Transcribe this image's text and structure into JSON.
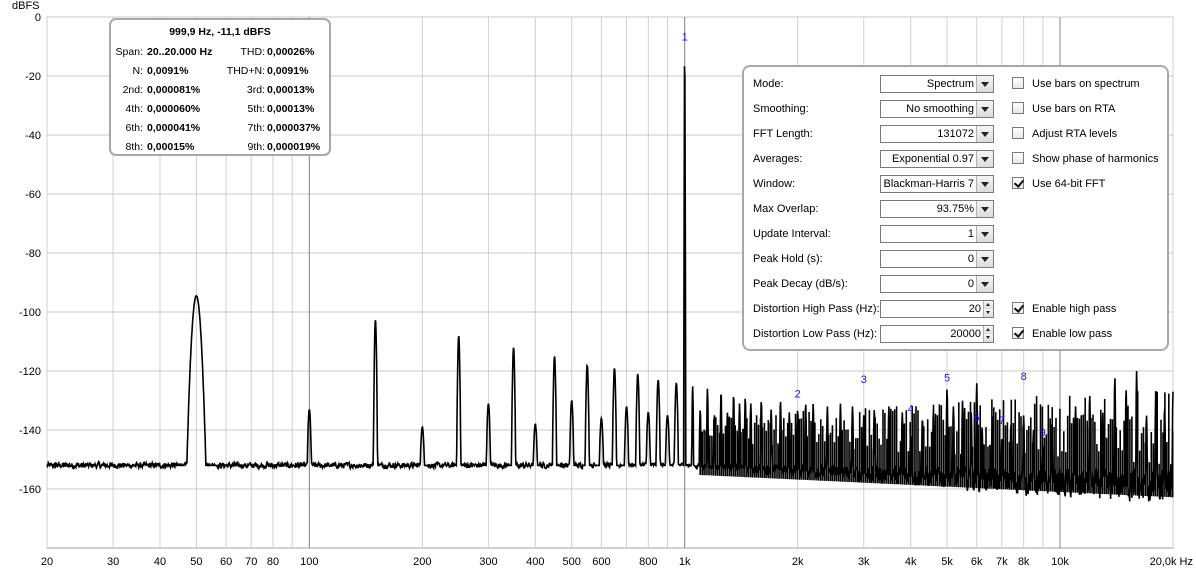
{
  "chart_data": {
    "type": "line",
    "ylabel": "dBFS",
    "xlim": [
      20,
      20000
    ],
    "ylim": [
      -180,
      0
    ],
    "x_scale": "log",
    "grid": true,
    "x_ticks": [
      {
        "v": 20,
        "t": "20"
      },
      {
        "v": 30,
        "t": "30"
      },
      {
        "v": 40,
        "t": "40"
      },
      {
        "v": 50,
        "t": "50"
      },
      {
        "v": 60,
        "t": "60"
      },
      {
        "v": 70,
        "t": "70"
      },
      {
        "v": 80,
        "t": "80"
      },
      {
        "v": 100,
        "t": "100"
      },
      {
        "v": 200,
        "t": "200"
      },
      {
        "v": 300,
        "t": "300"
      },
      {
        "v": 400,
        "t": "400"
      },
      {
        "v": 500,
        "t": "500"
      },
      {
        "v": 600,
        "t": "600"
      },
      {
        "v": 800,
        "t": "800"
      },
      {
        "v": 1000,
        "t": "1k"
      },
      {
        "v": 2000,
        "t": "2k"
      },
      {
        "v": 3000,
        "t": "3k"
      },
      {
        "v": 4000,
        "t": "4k"
      },
      {
        "v": 5000,
        "t": "5k"
      },
      {
        "v": 6000,
        "t": "6k"
      },
      {
        "v": 7000,
        "t": "7k"
      },
      {
        "v": 8000,
        "t": "8k"
      },
      {
        "v": 10000,
        "t": "10k"
      },
      {
        "v": 20000,
        "t": "20,0k Hz"
      }
    ],
    "y_ticks": [
      {
        "v": 0,
        "t": "0"
      },
      {
        "v": -20,
        "t": "-20"
      },
      {
        "v": -40,
        "t": "-40"
      },
      {
        "v": -60,
        "t": "-60"
      },
      {
        "v": -80,
        "t": "-80"
      },
      {
        "v": -100,
        "t": "-100"
      },
      {
        "v": -120,
        "t": "-120"
      },
      {
        "v": -140,
        "t": "-140"
      },
      {
        "v": -160,
        "t": "-160"
      }
    ],
    "noise_floor_db": -152,
    "series": [
      {
        "color": "#000000",
        "peaks": [
          {
            "f": 50,
            "db": -94.5
          },
          {
            "f": 100,
            "db": -133
          },
          {
            "f": 150,
            "db": -102.5
          },
          {
            "f": 200,
            "db": -139
          },
          {
            "f": 250,
            "db": -108
          },
          {
            "f": 300,
            "db": -131
          },
          {
            "f": 350,
            "db": -112
          },
          {
            "f": 400,
            "db": -138
          },
          {
            "f": 450,
            "db": -115
          },
          {
            "f": 500,
            "db": -130
          },
          {
            "f": 550,
            "db": -118
          },
          {
            "f": 600,
            "db": -136
          },
          {
            "f": 650,
            "db": -119
          },
          {
            "f": 700,
            "db": -132
          },
          {
            "f": 750,
            "db": -121
          },
          {
            "f": 800,
            "db": -134
          },
          {
            "f": 850,
            "db": -123
          },
          {
            "f": 900,
            "db": -135
          },
          {
            "f": 950,
            "db": -124
          },
          {
            "f": 1000,
            "db": -11.1
          },
          {
            "f": 1050,
            "db": -125
          },
          {
            "f": 1100,
            "db": -133
          },
          {
            "f": 1150,
            "db": -126
          },
          {
            "f": 1200,
            "db": -135
          },
          {
            "f": 1250,
            "db": -127
          },
          {
            "f": 1300,
            "db": -134
          },
          {
            "f": 1350,
            "db": -128
          },
          {
            "f": 1400,
            "db": -131
          },
          {
            "f": 1450,
            "db": -129
          },
          {
            "f": 1500,
            "db": -131
          },
          {
            "f": 1600,
            "db": -130
          },
          {
            "f": 1700,
            "db": -133
          },
          {
            "f": 1800,
            "db": -130
          },
          {
            "f": 1900,
            "db": -134
          },
          {
            "f": 2000,
            "db": -133
          },
          {
            "f": 2100,
            "db": -131
          },
          {
            "f": 2200,
            "db": -131
          },
          {
            "f": 2400,
            "db": -132
          },
          {
            "f": 2600,
            "db": -131
          },
          {
            "f": 2800,
            "db": -132
          },
          {
            "f": 3000,
            "db": -135
          },
          {
            "f": 3200,
            "db": -133
          },
          {
            "f": 3500,
            "db": -132
          },
          {
            "f": 3800,
            "db": -134
          },
          {
            "f": 4000,
            "db": -142
          },
          {
            "f": 4300,
            "db": -136
          },
          {
            "f": 4600,
            "db": -133
          },
          {
            "f": 5000,
            "db": -126
          },
          {
            "f": 5200,
            "db": -132
          },
          {
            "f": 5500,
            "db": -130
          },
          {
            "f": 5800,
            "db": -134
          },
          {
            "f": 6000,
            "db": -124
          },
          {
            "f": 6200,
            "db": -139
          },
          {
            "f": 6600,
            "db": -135
          },
          {
            "f": 7000,
            "db": -143
          },
          {
            "f": 7400,
            "db": -138
          },
          {
            "f": 8000,
            "db": -135
          },
          {
            "f": 8500,
            "db": -140
          },
          {
            "f": 9000,
            "db": -145
          },
          {
            "f": 9500,
            "db": -138
          },
          {
            "f": 11000,
            "db": -132
          },
          {
            "f": 12000,
            "db": -128
          },
          {
            "f": 13000,
            "db": -134
          },
          {
            "f": 14000,
            "db": -122
          },
          {
            "f": 15000,
            "db": -126
          },
          {
            "f": 16000,
            "db": -120
          },
          {
            "f": 17000,
            "db": -135
          },
          {
            "f": 18000,
            "db": -126
          },
          {
            "f": 19000,
            "db": -132
          },
          {
            "f": 20000,
            "db": -127
          }
        ]
      }
    ],
    "markers": [
      {
        "f": 1000,
        "db": -8,
        "t": "1"
      },
      {
        "f": 2000,
        "db": -129,
        "t": "2"
      },
      {
        "f": 3000,
        "db": -124,
        "t": "3"
      },
      {
        "f": 4000,
        "db": -134,
        "t": "4"
      },
      {
        "f": 5000,
        "db": -123.5,
        "t": "5"
      },
      {
        "f": 6000,
        "db": -137,
        "t": "6"
      },
      {
        "f": 7000,
        "db": -138,
        "t": "7"
      },
      {
        "f": 8000,
        "db": -123,
        "t": "8"
      },
      {
        "f": 9000,
        "db": -142,
        "t": "9"
      }
    ]
  },
  "info": {
    "title": "999,9 Hz, -11,1 dBFS",
    "rows": [
      {
        "l1": "Span:",
        "v1": "20..20.000 Hz",
        "l2": "THD:",
        "v2": "0,00026%"
      },
      {
        "l1": "N:",
        "v1": "0,0091%",
        "l2": "THD+N:",
        "v2": "0,0091%"
      },
      {
        "l1": "2nd:",
        "v1": "0,000081%",
        "l2": "3rd:",
        "v2": "0,00013%"
      },
      {
        "l1": "4th:",
        "v1": "0,000060%",
        "l2": "5th:",
        "v2": "0,00013%"
      },
      {
        "l1": "6th:",
        "v1": "0,000041%",
        "l2": "7th:",
        "v2": "0,000037%"
      },
      {
        "l1": "8th:",
        "v1": "0,00015%",
        "l2": "9th:",
        "v2": "0,000019%"
      }
    ]
  },
  "settings": {
    "mode": {
      "label": "Mode:",
      "value": "Spectrum"
    },
    "smoothing": {
      "label": "Smoothing:",
      "value": "No  smoothing"
    },
    "fft_length": {
      "label": "FFT Length:",
      "value": "131072"
    },
    "averages": {
      "label": "Averages:",
      "value": "Exponential 0.97"
    },
    "window": {
      "label": "Window:",
      "value": "Blackman-Harris 7"
    },
    "max_overlap": {
      "label": "Max Overlap:",
      "value": "93.75%"
    },
    "update_interval": {
      "label": "Update Interval:",
      "value": "1"
    },
    "peak_hold": {
      "label": "Peak Hold (s):",
      "value": "0"
    },
    "peak_decay": {
      "label": "Peak Decay (dB/s):",
      "value": "0"
    },
    "dist_high_pass": {
      "label": "Distortion High Pass (Hz):",
      "value": "20"
    },
    "dist_low_pass": {
      "label": "Distortion Low Pass (Hz):",
      "value": "20000"
    },
    "use_bars_spectrum": {
      "label": "Use bars on spectrum",
      "checked": false
    },
    "use_bars_rta": {
      "label": "Use bars on RTA",
      "checked": false
    },
    "adjust_rta": {
      "label": "Adjust RTA levels",
      "checked": false
    },
    "show_phase": {
      "label": "Show phase of harmonics",
      "checked": false
    },
    "use_64bit": {
      "label": "Use 64-bit FFT",
      "checked": true
    },
    "enable_high_pass": {
      "label": "Enable high pass",
      "checked": true
    },
    "enable_low_pass": {
      "label": "Enable low pass",
      "checked": true
    }
  }
}
